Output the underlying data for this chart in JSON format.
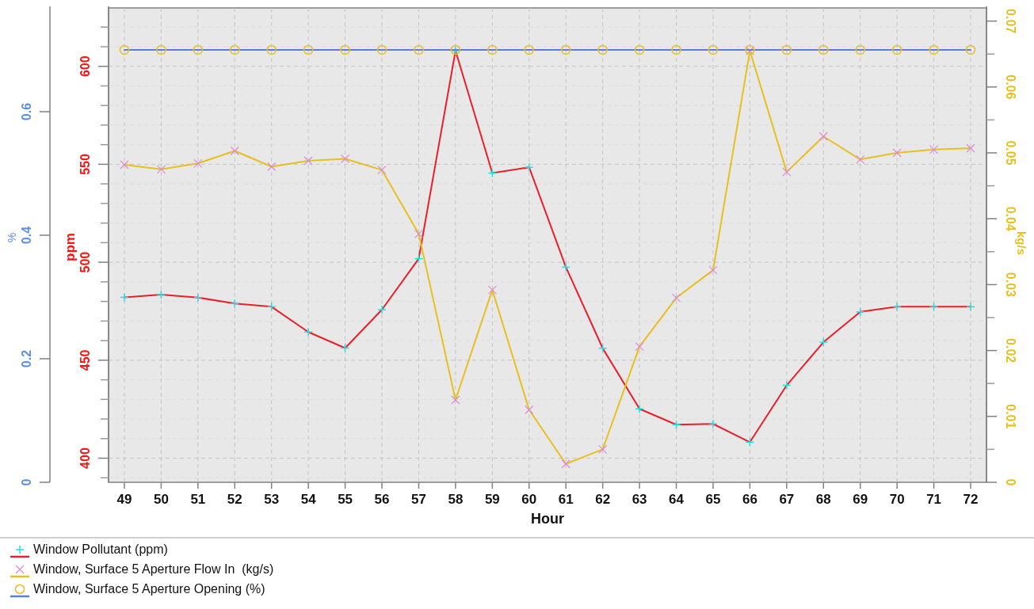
{
  "chart_data": {
    "type": "line",
    "xlabel": "Hour",
    "ylabel": "%",
    "y2label": "ppm",
    "y3label": "kg/s",
    "categories": [
      "49",
      "50",
      "51",
      "52",
      "53",
      "54",
      "55",
      "56",
      "57",
      "58",
      "59",
      "60",
      "61",
      "62",
      "63",
      "64",
      "65",
      "66",
      "67",
      "68",
      "69",
      "70",
      "71",
      "72"
    ],
    "ylim": [
      0,
      0.768
    ],
    "yticks": [
      0,
      0.2,
      0.4,
      0.6
    ],
    "y2lim": [
      387.7,
      629.8
    ],
    "y2ticks": [
      {
        "value": 390,
        "label": null
      },
      400,
      {
        "value": 410,
        "label": null
      },
      {
        "value": 420,
        "label": null
      },
      {
        "value": 430,
        "label": null
      },
      {
        "value": 440,
        "label": null
      },
      450,
      {
        "value": 460,
        "label": null
      },
      {
        "value": 470,
        "label": null
      },
      {
        "value": 480,
        "label": null
      },
      {
        "value": 490,
        "label": null
      },
      500,
      {
        "value": 510,
        "label": null
      },
      {
        "value": 520,
        "label": null
      },
      {
        "value": 530,
        "label": null
      },
      {
        "value": 540,
        "label": null
      },
      550,
      {
        "value": 560,
        "label": null
      },
      {
        "value": 570,
        "label": null
      },
      {
        "value": 580,
        "label": null
      },
      {
        "value": 590,
        "label": null
      },
      600,
      {
        "value": 610,
        "label": null
      },
      {
        "value": 620,
        "label": null
      }
    ],
    "y3lim": [
      0,
      0.072
    ],
    "y3ticks": [
      0,
      {
        "value": 0.005,
        "label": null
      },
      0.01,
      {
        "value": 0.015,
        "label": null
      },
      0.02,
      {
        "value": 0.025,
        "label": null
      },
      0.03,
      {
        "value": 0.035,
        "label": null
      },
      0.04,
      {
        "value": 0.045,
        "label": null
      },
      0.05,
      {
        "value": 0.055,
        "label": null
      },
      0.06,
      {
        "value": 0.065,
        "label": null
      },
      0.07
    ],
    "grid": true,
    "legend": "bottom",
    "line_style": "solid",
    "series": [
      {
        "name": "Window Pollutant (ppm)",
        "axis": "y2",
        "color": "#e8202a",
        "marker": "plus",
        "colors": [
          "#20e0e8",
          "#20e0e8",
          "#20e0e8",
          "#20e0e8",
          "#20e0e8",
          "#20e0e8",
          "#20e0e8",
          "#20e0e8",
          "#20e0e8",
          "#20e0e8",
          "#20e0e8",
          "#20e0e8",
          "#20e0e8",
          "#20e0e8",
          "#20e0e8",
          "#20e0e8",
          "#20e0e8",
          "#20e0e8",
          "#20e0e8",
          "#20e0e8",
          "#20e0e8",
          "#20e0e8",
          "#20e0e8",
          "#20e0e8"
        ],
        "values": [
          482.1,
          483.5,
          482,
          478.9,
          477.3,
          464.4,
          456.2,
          475.8,
          501.8,
          608,
          545.5,
          548.5,
          497.5,
          456.1,
          425.2,
          417.1,
          417.5,
          408.2,
          437.2,
          459.2,
          474.7,
          477.3,
          477.3,
          477.3
        ]
      },
      {
        "name": "Window, Surface 5 Aperture Flow In  (kg/s)",
        "axis": "y3",
        "color": "#e6c020",
        "marker": "cross",
        "colors": [
          "#d98ad9",
          "#d98ad9",
          "#d98ad9",
          "#d98ad9",
          "#d98ad9",
          "#d98ad9",
          "#d98ad9",
          "#d98ad9",
          "#d98ad9",
          "#d98ad9",
          "#d98ad9",
          "#d98ad9",
          "#d98ad9",
          "#d98ad9",
          "#d98ad9",
          "#d98ad9",
          "#d98ad9",
          "#d98ad9",
          "#d98ad9",
          "#d98ad9",
          "#d98ad9",
          "#d98ad9",
          "#d98ad9",
          "#d98ad9"
        ],
        "values": [
          0.0482,
          0.0475,
          0.0484,
          0.0503,
          0.0479,
          0.0488,
          0.0491,
          0.0474,
          0.0377,
          0.0125,
          0.0292,
          0.011,
          0.0028,
          0.005,
          0.0206,
          0.028,
          0.0322,
          0.0655,
          0.0471,
          0.0525,
          0.049,
          0.05,
          0.0505,
          0.0507
        ]
      },
      {
        "name": "Window, Surface 5 Aperture Opening (%)",
        "axis": "y",
        "color": "#5b7fd0",
        "marker": "circle",
        "colors": [
          "#e6c020",
          "#e6c020",
          "#e6c020",
          "#e6c020",
          "#e6c020",
          "#e6c020",
          "#e6c020",
          "#e6c020",
          "#e6c020",
          "#e6c020",
          "#e6c020",
          "#e6c020",
          "#e6c020",
          "#e6c020",
          "#e6c020",
          "#e6c020",
          "#e6c020",
          "#e6c020",
          "#e6c020",
          "#e6c020",
          "#e6c020",
          "#e6c020",
          "#e6c020",
          "#e6c020"
        ],
        "values": [
          0.7,
          0.7,
          0.7,
          0.7,
          0.7,
          0.7,
          0.7,
          0.7,
          0.7,
          0.7,
          0.7,
          0.7,
          0.7,
          0.7,
          0.7,
          0.7,
          0.7,
          0.7,
          0.7,
          0.7,
          0.7,
          0.7,
          0.7,
          0.7
        ]
      }
    ]
  }
}
